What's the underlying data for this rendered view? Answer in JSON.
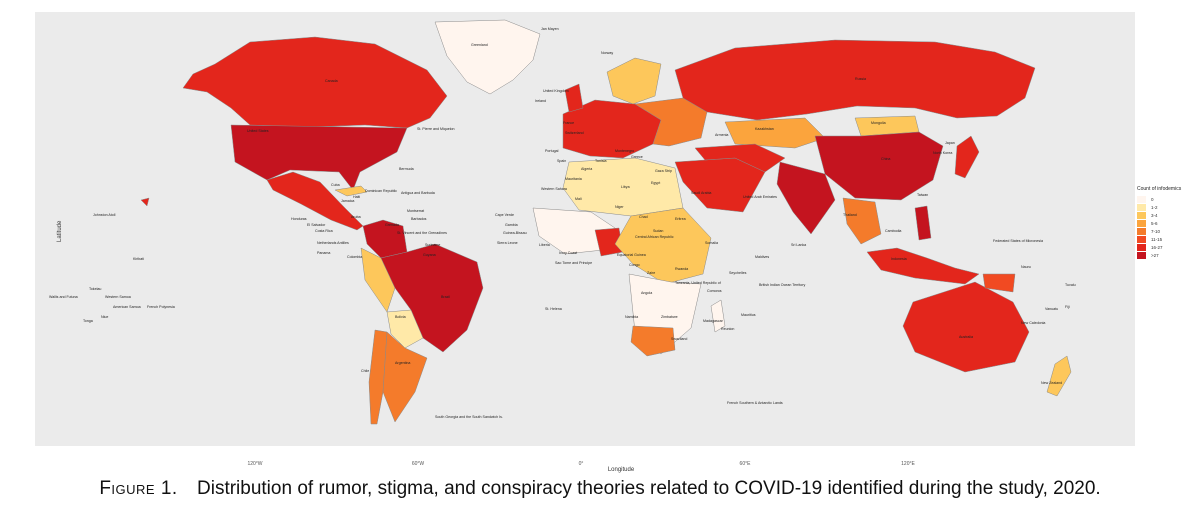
{
  "map": {
    "axis_labels": {
      "y": "Latitude",
      "x": "Longitude"
    },
    "x_ticks": [
      "120°W",
      "60°W",
      "0°",
      "60°E",
      "120°E"
    ],
    "background_color": "#ebebeb",
    "border_color": "#8a8a8a"
  },
  "legend": {
    "title": "Count of infodemics",
    "items": [
      {
        "label": "0",
        "color": "#fff5ee"
      },
      {
        "label": "1-2",
        "color": "#ffe9a8"
      },
      {
        "label": "3-4",
        "color": "#fdc75b"
      },
      {
        "label": "5-6",
        "color": "#fba43d"
      },
      {
        "label": "7-10",
        "color": "#f47b2b"
      },
      {
        "label": "11-15",
        "color": "#f14a22"
      },
      {
        "label": "16-27",
        "color": "#e3261c"
      },
      {
        "label": ">27",
        "color": "#c4141f"
      }
    ]
  },
  "country_labels": [
    {
      "name": "Greenland"
    },
    {
      "name": "Jan Mayen"
    },
    {
      "name": "Norway"
    },
    {
      "name": "United Kingdom"
    },
    {
      "name": "Ireland"
    },
    {
      "name": "France"
    },
    {
      "name": "Switzerland"
    },
    {
      "name": "Portugal"
    },
    {
      "name": "Spain"
    },
    {
      "name": "Russia"
    },
    {
      "name": "Kazakhstan"
    },
    {
      "name": "Mongolia"
    },
    {
      "name": "China"
    },
    {
      "name": "United States"
    },
    {
      "name": "Canada"
    },
    {
      "name": "Bermuda"
    },
    {
      "name": "Cuba"
    },
    {
      "name": "Dominican Republic"
    },
    {
      "name": "Haiti"
    },
    {
      "name": "Jamaica"
    },
    {
      "name": "Honduras"
    },
    {
      "name": "El Salvador"
    },
    {
      "name": "Costa Rica"
    },
    {
      "name": "Panama"
    },
    {
      "name": "Colombia"
    },
    {
      "name": "Guyana"
    },
    {
      "name": "Suriname"
    },
    {
      "name": "Brazil"
    },
    {
      "name": "Bolivia"
    },
    {
      "name": "Chile"
    },
    {
      "name": "Argentina"
    },
    {
      "name": "South Georgia and the South Sandwich Is."
    },
    {
      "name": "Antigua and Barbuda"
    },
    {
      "name": "Montserrat"
    },
    {
      "name": "Barbados"
    },
    {
      "name": "Grenada"
    },
    {
      "name": "St. Vincent and the Grenadines"
    },
    {
      "name": "Aruba"
    },
    {
      "name": "Netherlands Antilles"
    },
    {
      "name": "Johnston Atoll"
    },
    {
      "name": "Kiribati"
    },
    {
      "name": "Tokelau"
    },
    {
      "name": "Wallis and Futuna"
    },
    {
      "name": "Western Samoa"
    },
    {
      "name": "American Samoa"
    },
    {
      "name": "Niue"
    },
    {
      "name": "Tonga"
    },
    {
      "name": "French Polynesia"
    },
    {
      "name": "Cape Verde"
    },
    {
      "name": "Gambia"
    },
    {
      "name": "Guinea-Bissau"
    },
    {
      "name": "Sierra Leone"
    },
    {
      "name": "Liberia"
    },
    {
      "name": "Ivory Coast"
    },
    {
      "name": "Sao Tome and Principe"
    },
    {
      "name": "Mauritania"
    },
    {
      "name": "Western Sahara"
    },
    {
      "name": "Mali"
    },
    {
      "name": "Niger"
    },
    {
      "name": "Chad"
    },
    {
      "name": "Sudan"
    },
    {
      "name": "Algeria"
    },
    {
      "name": "Libya"
    },
    {
      "name": "Egypt"
    },
    {
      "name": "Tunisia"
    },
    {
      "name": "Saudi Arabia"
    },
    {
      "name": "Eritrea"
    },
    {
      "name": "Somalia"
    },
    {
      "name": "Central African Republic"
    },
    {
      "name": "Equatorial Guinea"
    },
    {
      "name": "Congo"
    },
    {
      "name": "Zaire"
    },
    {
      "name": "Rwanda"
    },
    {
      "name": "Tanzania, United Republic of"
    },
    {
      "name": "Angola"
    },
    {
      "name": "Comoros"
    },
    {
      "name": "Seychelles"
    },
    {
      "name": "British Indian Ocean Territory"
    },
    {
      "name": "Namibia"
    },
    {
      "name": "Zimbabwe"
    },
    {
      "name": "Madagascar"
    },
    {
      "name": "Mauritius"
    },
    {
      "name": "Reunion"
    },
    {
      "name": "St. Helena"
    },
    {
      "name": "Swaziland"
    },
    {
      "name": "Maldives"
    },
    {
      "name": "Sri Lanka"
    },
    {
      "name": "Thailand"
    },
    {
      "name": "Cambodia"
    },
    {
      "name": "North Korea"
    },
    {
      "name": "Japan"
    },
    {
      "name": "Taiwan"
    },
    {
      "name": "Indonesia"
    },
    {
      "name": "Federated States of Micronesia"
    },
    {
      "name": "Nauru"
    },
    {
      "name": "Tuvalu"
    },
    {
      "name": "Vanuatu"
    },
    {
      "name": "Fiji"
    },
    {
      "name": "New Caledonia"
    },
    {
      "name": "Australia"
    },
    {
      "name": "New Zealand"
    },
    {
      "name": "French Southern & Antarctic Lands"
    },
    {
      "name": "St. Pierre and Miquelon"
    },
    {
      "name": "Montenegro"
    },
    {
      "name": "Greece"
    },
    {
      "name": "Armenia"
    },
    {
      "name": "United Arab Emirates"
    },
    {
      "name": "Gaza Strip"
    }
  ],
  "caption": {
    "label": "Figure 1.",
    "text": "Distribution of rumor, stigma, and conspiracy theories related to COVID-19 identified during the study, 2020."
  }
}
